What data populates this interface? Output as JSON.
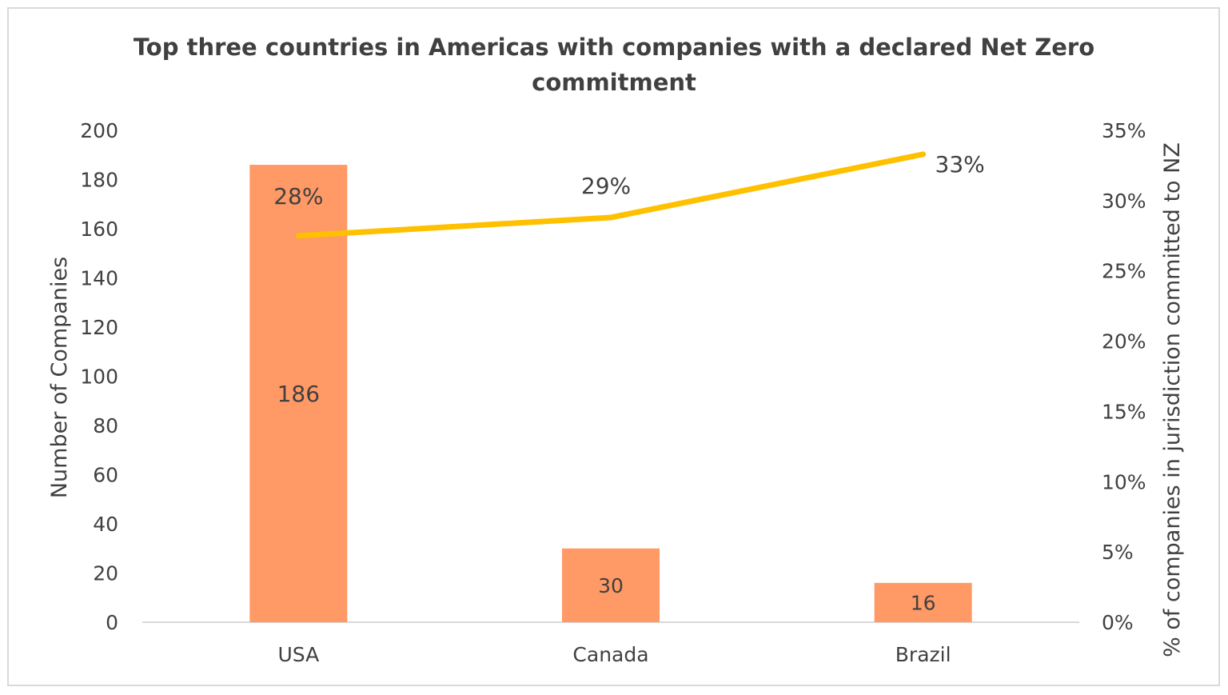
{
  "chart_data": {
    "type": "bar+line",
    "title": "Top three countries in Americas with companies with a declared Net Zero commitment",
    "title_lines": [
      "Top three countries in Americas with companies with a declared Net Zero",
      "commitment"
    ],
    "categories": [
      "USA",
      "Canada",
      "Brazil"
    ],
    "series": [
      {
        "type": "bar",
        "axis": "left",
        "values": [
          186,
          30,
          16
        ],
        "labels": [
          "186",
          "30",
          "16"
        ],
        "color": "#FF9966"
      },
      {
        "type": "line",
        "axis": "right",
        "values": [
          27.5,
          28.8,
          33.3
        ],
        "labels": [
          "28%",
          "29%",
          "33%"
        ],
        "color": "#FFC000"
      }
    ],
    "ylabel": "Number of Companies",
    "y2label": "% of companies in jurisdiction committed to NZ",
    "ylim": [
      0,
      200
    ],
    "yticks": [
      "0",
      "20",
      "40",
      "60",
      "80",
      "100",
      "120",
      "140",
      "160",
      "180",
      "200"
    ],
    "y2lim": [
      0,
      35
    ],
    "y2ticks": [
      "0%",
      "5%",
      "10%",
      "15%",
      "20%",
      "25%",
      "30%",
      "35%"
    ],
    "grid": false,
    "legend": "none"
  }
}
